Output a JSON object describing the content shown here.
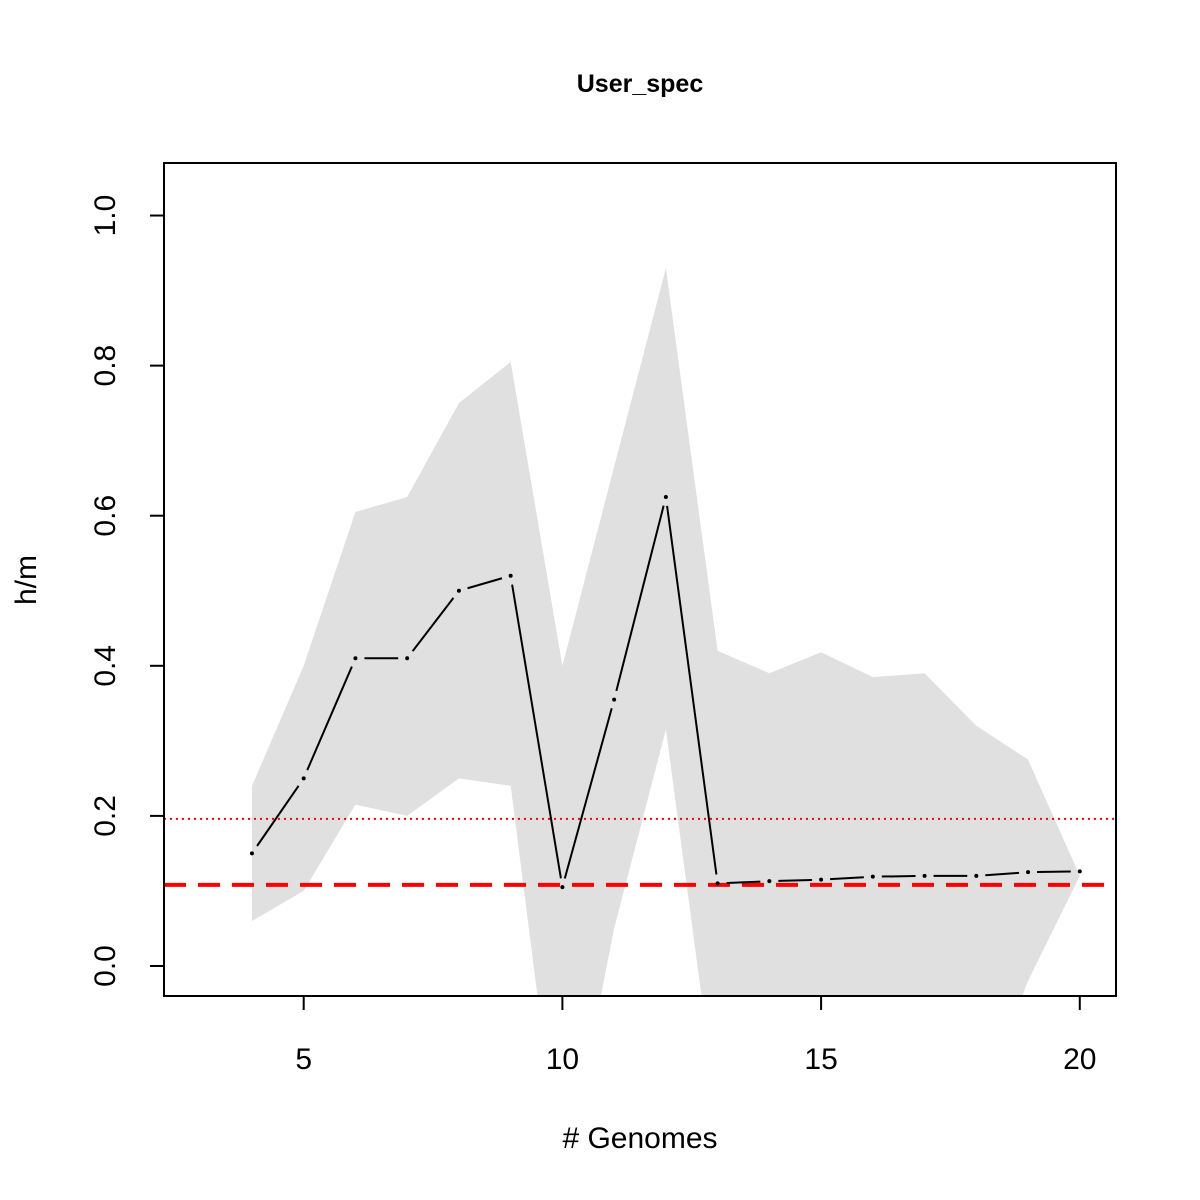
{
  "chart_data": {
    "type": "line",
    "title": "User_spec",
    "xlabel": "# Genomes",
    "ylabel": "h/m",
    "xlim": [
      2.3,
      20.7
    ],
    "ylim": [
      -0.04,
      1.07
    ],
    "xticks": [
      5,
      10,
      15,
      20
    ],
    "xtick_labels": [
      "5",
      "10",
      "15",
      "20"
    ],
    "yticks": [
      0,
      0.2,
      0.4,
      0.6,
      0.8,
      1.0
    ],
    "ytick_labels": [
      "0.0",
      "0.2",
      "0.4",
      "0.6",
      "0.8",
      "1.0"
    ],
    "grid": false,
    "legend": "none",
    "x": [
      4,
      5,
      6,
      7,
      8,
      9,
      10,
      11,
      12,
      13,
      14,
      15,
      16,
      17,
      18,
      19,
      20
    ],
    "series": [
      {
        "values": [
          0.15,
          0.25,
          0.41,
          0.41,
          0.5,
          0.52,
          0.105,
          0.355,
          0.625,
          0.11,
          0.113,
          0.115,
          0.119,
          0.12,
          0.12,
          0.125,
          0.126
        ],
        "color": "#000000"
      }
    ],
    "band": {
      "upper": [
        0.24,
        0.4,
        0.605,
        0.625,
        0.75,
        0.805,
        0.4,
        0.665,
        0.93,
        0.42,
        0.39,
        0.418,
        0.385,
        0.39,
        0.32,
        0.275,
        0.12
      ],
      "lower": [
        0.06,
        0.1,
        0.215,
        0.2,
        0.25,
        0.24,
        -0.3,
        0.05,
        0.315,
        -0.2,
        -0.2,
        -0.2,
        -0.2,
        -0.2,
        -0.2,
        -0.02,
        0.12
      ],
      "color": "#e0e0e0"
    },
    "hlines": [
      {
        "y": 0.196,
        "style": "dotted",
        "color": "#ff0000"
      },
      {
        "y": 0.108,
        "style": "dashed",
        "color": "#ff0000"
      }
    ]
  }
}
